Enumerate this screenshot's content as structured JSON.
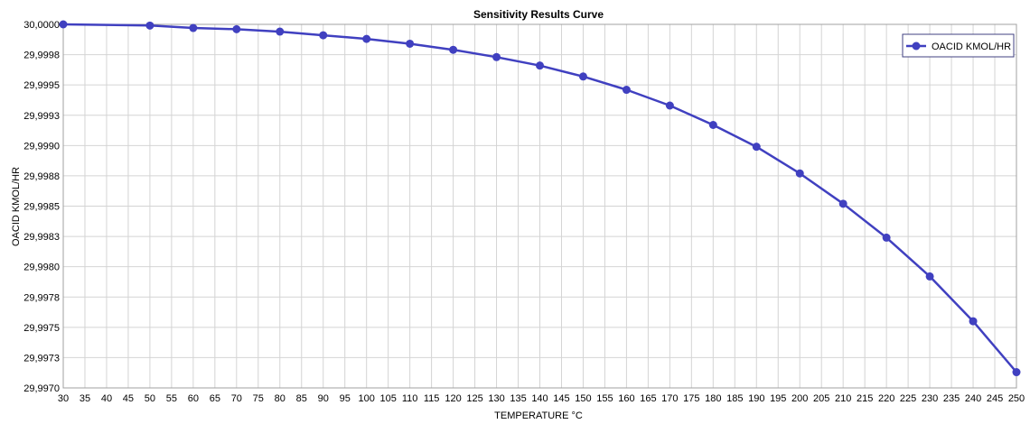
{
  "chart_data": {
    "type": "line",
    "title": "Sensitivity Results Curve",
    "xlabel": "TEMPERATURE °C",
    "ylabel": "OACID KMOL/HR",
    "xlim": [
      30,
      250
    ],
    "ylim": [
      29.997,
      30.0
    ],
    "x_ticks": [
      "30",
      "35",
      "40",
      "45",
      "50",
      "55",
      "60",
      "65",
      "70",
      "75",
      "80",
      "85",
      "90",
      "95",
      "100",
      "105",
      "110",
      "115",
      "120",
      "125",
      "130",
      "135",
      "140",
      "145",
      "150",
      "155",
      "160",
      "165",
      "170",
      "175",
      "180",
      "185",
      "190",
      "195",
      "200",
      "205",
      "210",
      "215",
      "220",
      "225",
      "230",
      "235",
      "240",
      "245",
      "250"
    ],
    "y_ticks": [
      "30,0000",
      "29,9998",
      "29,9995",
      "29,9993",
      "29,9990",
      "29,9988",
      "29,9985",
      "29,9983",
      "29,9980",
      "29,9978",
      "29,9975",
      "29,9973",
      "29,9970"
    ],
    "x": [
      30,
      50,
      60,
      70,
      80,
      90,
      100,
      110,
      120,
      130,
      140,
      150,
      160,
      170,
      180,
      190,
      200,
      210,
      220,
      230,
      240,
      250
    ],
    "series": [
      {
        "name": "OACID KMOL/HR",
        "color": "#4040c0",
        "values": [
          30.0,
          29.99999,
          29.99997,
          29.99996,
          29.99994,
          29.99991,
          29.99988,
          29.99984,
          29.99979,
          29.99973,
          29.99966,
          29.99957,
          29.99946,
          29.99933,
          29.99917,
          29.99899,
          29.99877,
          29.99852,
          29.99824,
          29.99792,
          29.99755,
          29.99713
        ]
      }
    ],
    "grid": true,
    "legend_position": "top-right"
  }
}
